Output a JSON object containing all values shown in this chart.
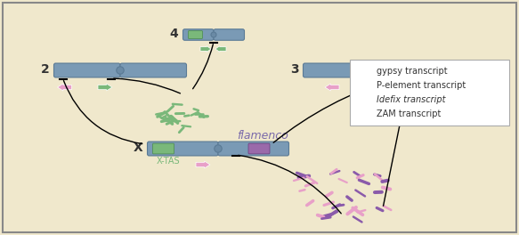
{
  "bg_color": "#f0e8cc",
  "border_color": "#888888",
  "chrom_color": "#7a9ab5",
  "chrom_centromere_color": "#6a8aa5",
  "chrom_edge_color": "#5a7a95",
  "green_segment_color": "#7ab87a",
  "purple_segment_color": "#9a6aaa",
  "arrow_gypsy_color": "#e8a0c8",
  "arrow_pelement_color": "#7ab87a",
  "arrow_idefix_color": "#9a3a8a",
  "arrow_zam_color": "#7a6aaa",
  "text_color": "#333333",
  "label_x_tas": "X-TAS",
  "label_x": "X",
  "label_flamenco": "flamenco",
  "label_2": "2",
  "label_3": "3",
  "label_4": "4",
  "legend_entries": [
    "gypsy transcript",
    "P-element transcript",
    "Idefix transcript",
    "ZAM transcript"
  ]
}
